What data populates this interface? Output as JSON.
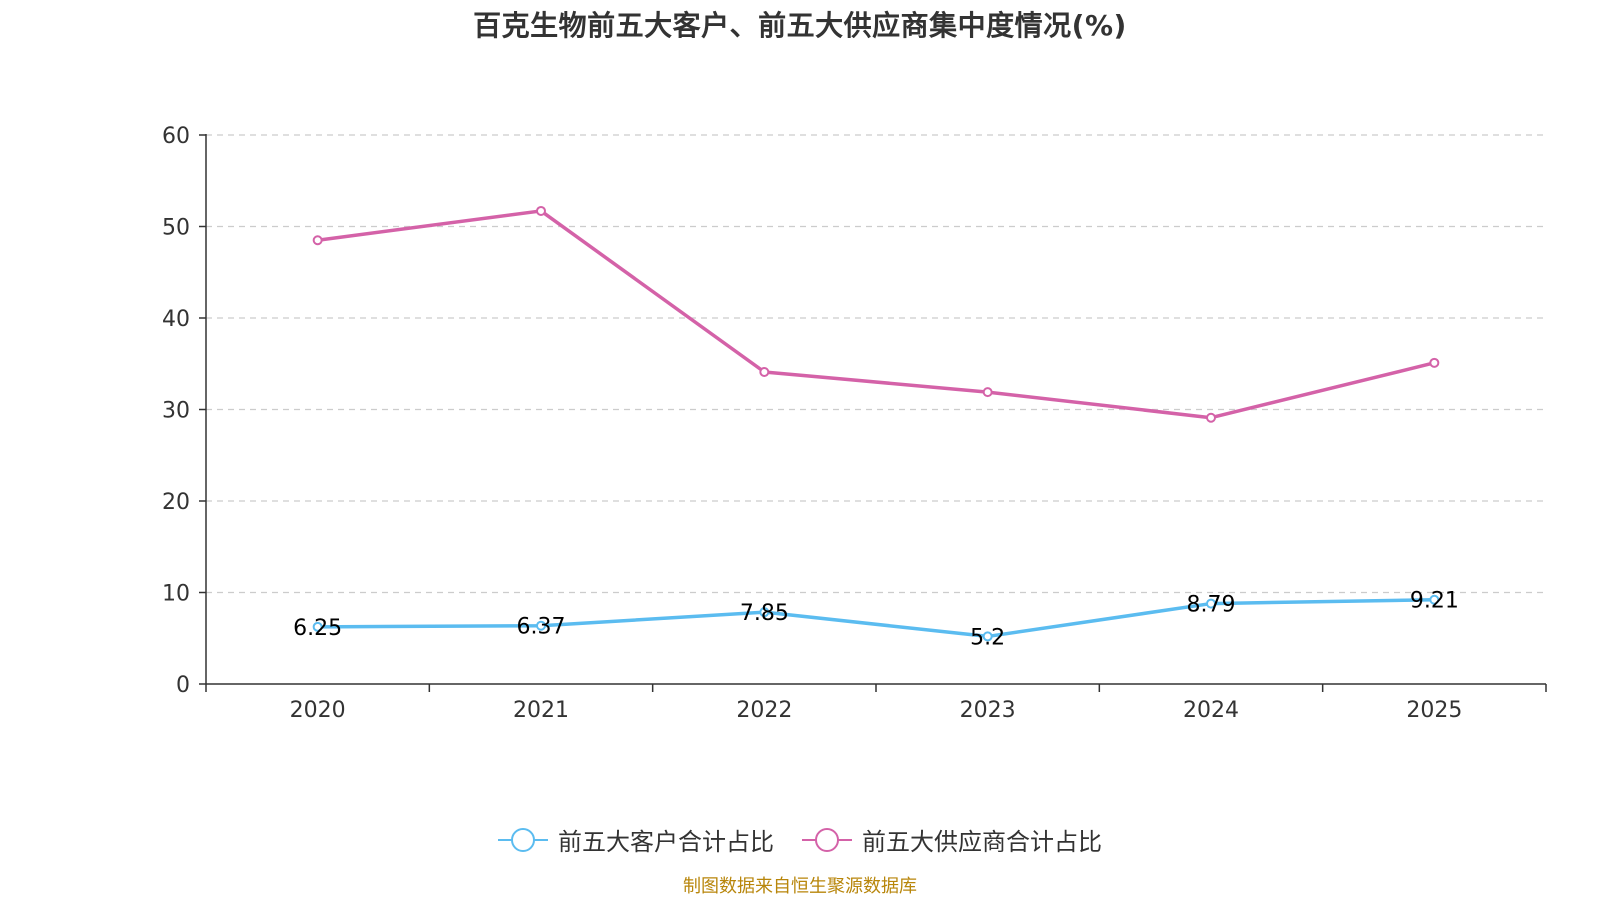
{
  "colors": {
    "customers": "#5bbcf0",
    "suppliers": "#d462a8",
    "axis": "#333333",
    "grid": "#cccccc",
    "source": "#b8860b"
  },
  "chart_data": {
    "type": "line",
    "title": "百克生物前五大客户、前五大供应商集中度情况(%)",
    "xlabel": "",
    "ylabel": "",
    "categories": [
      "2020",
      "2021",
      "2022",
      "2023",
      "2024",
      "2025"
    ],
    "ylim": [
      0,
      60
    ],
    "yticks": [
      0,
      10,
      20,
      30,
      40,
      50,
      60
    ],
    "grid": true,
    "legend_position": "bottom",
    "series": [
      {
        "name": "前五大客户合计占比",
        "values": [
          6.25,
          6.37,
          7.85,
          5.2,
          8.79,
          9.21
        ],
        "labels": [
          "6.25",
          "6.37",
          "7.85",
          "5.2",
          "8.79",
          "9.21"
        ],
        "show_labels": true,
        "color": "#5bbcf0"
      },
      {
        "name": "前五大供应商合计占比",
        "values": [
          48.5,
          51.7,
          34.1,
          31.9,
          29.1,
          35.1
        ],
        "labels": [],
        "show_labels": false,
        "color": "#d462a8"
      }
    ]
  },
  "source": "制图数据来自恒生聚源数据库"
}
